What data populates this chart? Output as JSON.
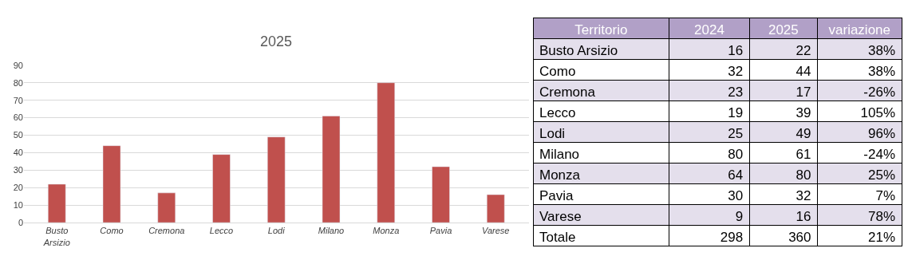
{
  "chart_data": [
    {
      "type": "bar",
      "title": "2025",
      "categories": [
        "Busto Arsizio",
        "Como",
        "Cremona",
        "Lecco",
        "Lodi",
        "Milano",
        "Monza",
        "Pavia",
        "Varese"
      ],
      "values": [
        22,
        44,
        17,
        39,
        49,
        61,
        80,
        32,
        16
      ],
      "color": "#c0504d",
      "ylim": [
        0,
        90
      ],
      "yticks": [
        0,
        10,
        20,
        30,
        40,
        50,
        60,
        70,
        80,
        90
      ],
      "grid": "y"
    },
    {
      "type": "other",
      "xlabel": "Territorio",
      "categories": [
        "Busto Arsizio",
        "Como",
        "Cremona",
        "Lecco",
        "Lodi",
        "Milano",
        "Monza",
        "Pavia",
        "Varese",
        "Totale"
      ],
      "data_labels": true,
      "color": "#b1a0c7",
      "series": [
        {
          "name": "2024",
          "values": [
            16,
            32,
            23,
            19,
            25,
            80,
            64,
            30,
            9,
            298
          ],
          "colors": [
            "#e4dfec",
            "#ffffff",
            "#e4dfec",
            "#ffffff",
            "#e4dfec",
            "#ffffff",
            "#e4dfec",
            "#ffffff",
            "#e4dfec",
            "#ffffff"
          ]
        },
        {
          "name": "2025",
          "values": [
            22,
            44,
            17,
            39,
            49,
            61,
            80,
            32,
            16,
            360
          ],
          "colors": [
            "#e4dfec",
            "#ffffff",
            "#e4dfec",
            "#ffffff",
            "#e4dfec",
            "#ffffff",
            "#e4dfec",
            "#ffffff",
            "#e4dfec",
            "#ffffff"
          ]
        },
        {
          "name": "variazione",
          "values": [
            38,
            38,
            -26,
            105,
            96,
            -24,
            25,
            7,
            78,
            21
          ],
          "value_labels": [
            "38%",
            "38%",
            "-26%",
            "105%",
            "96%",
            "-24%",
            "25%",
            "7%",
            "78%",
            "21%"
          ],
          "colors": [
            "#e4dfec",
            "#ffffff",
            "#e4dfec",
            "#ffffff",
            "#e4dfec",
            "#ffffff",
            "#e4dfec",
            "#ffffff",
            "#e4dfec",
            "#ffffff"
          ]
        }
      ]
    }
  ]
}
